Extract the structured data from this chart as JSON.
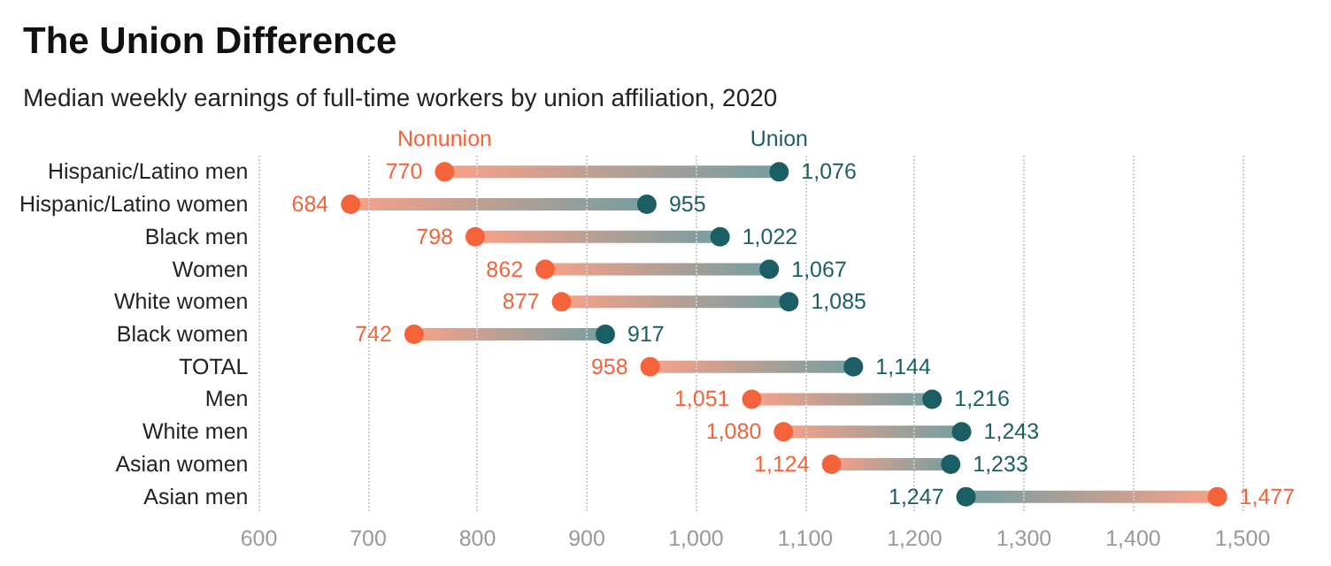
{
  "chart_data": {
    "type": "scatter",
    "orientation": "horizontal",
    "title": "The Union Difference",
    "subtitle": "Median weekly earnings of full-time workers by union affiliation, 2020",
    "categories": [
      "Hispanic/Latino men",
      "Hispanic/Latino women",
      "Black men",
      "Women",
      "White women",
      "Black women",
      "TOTAL",
      "Men",
      "White men",
      "Asian women",
      "Asian men"
    ],
    "series": [
      {
        "name": "Nonunion",
        "color": "#f4633a",
        "values": [
          770,
          684,
          798,
          862,
          877,
          742,
          958,
          1051,
          1080,
          1124,
          1477
        ],
        "value_labels": [
          "770",
          "684",
          "798",
          "862",
          "877",
          "742",
          "958",
          "1,051",
          "1,080",
          "1,124",
          "1,477"
        ]
      },
      {
        "name": "Union",
        "color": "#1b5e63",
        "values": [
          1076,
          955,
          1022,
          1067,
          1085,
          917,
          1144,
          1216,
          1243,
          1233,
          1247
        ],
        "value_labels": [
          "1,076",
          "955",
          "1,022",
          "1,067",
          "1,085",
          "917",
          "1,144",
          "1,216",
          "1,243",
          "1,233",
          "1,247"
        ]
      }
    ],
    "xlim": [
      600,
      1500
    ],
    "xticks": [
      600,
      700,
      800,
      900,
      {
        "value": 1000,
        "label": "1,000"
      },
      {
        "value": 1100,
        "label": "1,100"
      },
      {
        "value": 1200,
        "label": "1,200"
      },
      {
        "value": 1300,
        "label": "1,300"
      },
      {
        "value": 1400,
        "label": "1,400"
      },
      {
        "value": 1500,
        "label": "1,500"
      }
    ],
    "grid": "x",
    "legend": false,
    "marker": "circle"
  }
}
